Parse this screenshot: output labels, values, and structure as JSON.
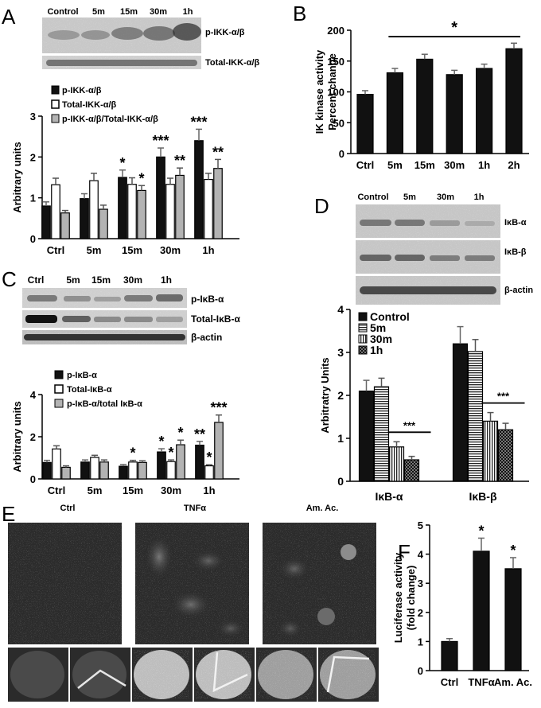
{
  "panels": {
    "A": {
      "letter": "A",
      "blot": {
        "lanes": [
          "Control",
          "5m",
          "15m",
          "30m",
          "1h"
        ],
        "rows": [
          "p-IKK-α/β",
          "Total-IKK-α/β"
        ]
      },
      "legend": [
        "p-IKK-α/β",
        "Total-IKK-α/β",
        "p-IKK-α/β/Total-IKK-α/β"
      ]
    },
    "B": {
      "letter": "B"
    },
    "C": {
      "letter": "C",
      "blot": {
        "lanes": [
          "Ctrl",
          "5m",
          "15m",
          "30m",
          "1h"
        ],
        "rows": [
          "p-IκB-α",
          "Total-IκB-α",
          "β-actin"
        ]
      },
      "legend": [
        "p-IκB-α",
        "Total-IκB-α",
        "p-IκB-α/total IκB-α"
      ]
    },
    "D": {
      "letter": "D",
      "blot": {
        "lanes": [
          "Control",
          "5m",
          "30m",
          "1h"
        ],
        "rows": [
          "IκB-α",
          "IκB-β",
          "β-actin"
        ]
      },
      "legend": [
        "Control",
        "5m",
        "30m",
        "1h"
      ]
    },
    "E": {
      "letter": "E",
      "columns": [
        "Ctrl",
        "TNFα",
        "Am. Ac."
      ]
    },
    "F": {
      "letter": "F"
    }
  },
  "colors": {
    "black": "#111111",
    "white": "#ffffff",
    "gray": "#b3b3b3"
  },
  "chart_data": [
    {
      "id": "A",
      "type": "bar",
      "categories": [
        "Ctrl",
        "5m",
        "15m",
        "30m",
        "1h"
      ],
      "series": [
        {
          "name": "p-IKK-α/β",
          "values": [
            0.8,
            0.98,
            1.5,
            2.0,
            2.4
          ],
          "errors": [
            0.1,
            0.12,
            0.18,
            0.22,
            0.28
          ]
        },
        {
          "name": "Total-IKK-α/β",
          "values": [
            1.32,
            1.42,
            1.33,
            1.33,
            1.45
          ],
          "errors": [
            0.16,
            0.18,
            0.16,
            0.15,
            0.15
          ]
        },
        {
          "name": "p-IKK-α/β/Total-IKK-α/β",
          "values": [
            0.63,
            0.72,
            1.18,
            1.55,
            1.72
          ],
          "errors": [
            0.06,
            0.1,
            0.12,
            0.18,
            0.22
          ]
        }
      ],
      "annotations": [
        {
          "category": "15m",
          "series": 0,
          "text": "*"
        },
        {
          "category": "15m",
          "series": 2,
          "text": "*"
        },
        {
          "category": "30m",
          "series": 0,
          "text": "***"
        },
        {
          "category": "30m",
          "series": 2,
          "text": "**"
        },
        {
          "category": "1h",
          "series": 0,
          "text": "***"
        },
        {
          "category": "1h",
          "series": 2,
          "text": "**"
        }
      ],
      "ylabel": "Arbitrary units",
      "ylim": [
        0,
        3
      ],
      "yticks": [
        0,
        1,
        2,
        3
      ]
    },
    {
      "id": "B",
      "type": "bar",
      "categories": [
        "Ctrl",
        "5m",
        "15m",
        "30m",
        "1h",
        "2h"
      ],
      "series": [
        {
          "values": [
            96,
            131,
            153,
            128,
            138,
            170
          ],
          "errors": [
            6,
            7,
            8,
            7,
            7,
            9
          ]
        }
      ],
      "ylabel": "IK kinase activity\nPercent change",
      "ylim": [
        0,
        200
      ],
      "yticks": [
        0,
        50,
        100,
        150,
        200
      ],
      "bracket": {
        "from": "5m",
        "to": "2h",
        "text": "*"
      }
    },
    {
      "id": "C",
      "type": "bar",
      "categories": [
        "Ctrl",
        "5m",
        "15m",
        "30m",
        "1h"
      ],
      "series": [
        {
          "name": "p-IκB-α",
          "values": [
            0.78,
            0.8,
            0.6,
            1.28,
            1.6
          ],
          "errors": [
            0.1,
            0.1,
            0.08,
            0.15,
            0.18
          ]
        },
        {
          "name": "Total-IκB-α",
          "values": [
            1.42,
            1.02,
            0.8,
            0.82,
            0.62
          ],
          "errors": [
            0.15,
            0.1,
            0.08,
            0.08,
            0.05
          ]
        },
        {
          "name": "p-IκB-α/total IκB-α",
          "values": [
            0.55,
            0.8,
            0.78,
            1.62,
            2.68
          ],
          "errors": [
            0.07,
            0.1,
            0.08,
            0.22,
            0.35
          ]
        }
      ],
      "annotations": [
        {
          "category": "15m",
          "series": 1,
          "text": "*"
        },
        {
          "category": "30m",
          "series": 0,
          "text": "*"
        },
        {
          "category": "30m",
          "series": 1,
          "text": "*"
        },
        {
          "category": "30m",
          "series": 2,
          "text": "*"
        },
        {
          "category": "1h",
          "series": 0,
          "text": "**"
        },
        {
          "category": "1h",
          "series": 1,
          "text": "*"
        },
        {
          "category": "1h",
          "series": 2,
          "text": "***"
        }
      ],
      "ylabel": "Arbitrary units",
      "ylim": [
        0,
        4
      ],
      "yticks": [
        0,
        2,
        4
      ]
    },
    {
      "id": "D",
      "type": "bar",
      "categories": [
        "IκB-α",
        "IκB-β"
      ],
      "series": [
        {
          "name": "Control",
          "values": [
            2.1,
            3.2
          ],
          "errors": [
            0.25,
            0.4
          ]
        },
        {
          "name": "5m",
          "values": [
            2.2,
            3.02
          ],
          "errors": [
            0.2,
            0.28
          ]
        },
        {
          "name": "30m",
          "values": [
            0.8,
            1.4
          ],
          "errors": [
            0.12,
            0.2
          ]
        },
        {
          "name": "1h",
          "values": [
            0.5,
            1.2
          ],
          "errors": [
            0.08,
            0.15
          ]
        }
      ],
      "brackets": [
        {
          "category": "IκB-α",
          "text": "***"
        },
        {
          "category": "IκB-β",
          "text": "***"
        }
      ],
      "ylabel": "Arbitratry Units",
      "ylim": [
        0,
        4
      ],
      "yticks": [
        0,
        1,
        2,
        3,
        4
      ]
    },
    {
      "id": "F",
      "type": "bar",
      "categories": [
        "Ctrl",
        "TNFα",
        "Am. Ac."
      ],
      "series": [
        {
          "values": [
            1.0,
            4.1,
            3.5
          ],
          "errors": [
            0.1,
            0.45,
            0.38
          ]
        }
      ],
      "annotations": [
        {
          "category": "TNFα",
          "series": 0,
          "text": "*"
        },
        {
          "category": "Am. Ac.",
          "series": 0,
          "text": "*"
        }
      ],
      "ylabel": "Luciferase activity\n(fold change)",
      "ylim": [
        0,
        5
      ],
      "yticks": [
        0,
        1,
        2,
        3,
        4,
        5
      ]
    }
  ]
}
